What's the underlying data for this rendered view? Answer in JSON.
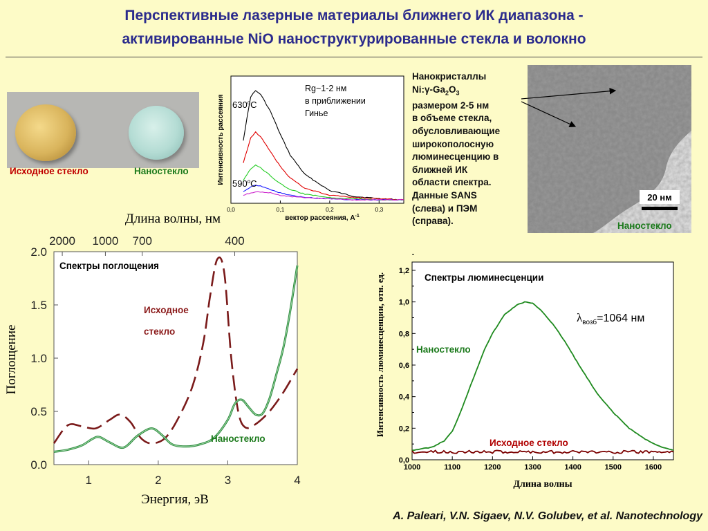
{
  "title": {
    "line1": "Перспективные лазерные материалы ближнего ИК диапазона -",
    "line2": "активированные NiO наноструктурированные стекла и волокно"
  },
  "photo": {
    "label_original": "Исходное стекло",
    "label_nano": "Наностекло"
  },
  "sans_plot": {
    "ylabel": "Интенсивность рассеяния",
    "xlabel": "вектор рассеяния, A",
    "xlabel_sup": "-1",
    "annotation_line1": "Rg~1-2 нм",
    "annotation_line2": "в приближении",
    "annotation_line3": "Гинье",
    "temp_high": "630",
    "temp_high_unit": "C",
    "temp_low": "590",
    "temp_low_unit": "C",
    "deg_sup": "o",
    "xticks": [
      "0,0",
      "0,1",
      "0,2",
      "0,3"
    ]
  },
  "tem": {
    "caption_lines": [
      "Нанокристаллы",
      "Ni:γ-Ga",
      "2",
      "O",
      "3",
      "размером 2-5 нм",
      "в объеме стекла,",
      "обусловливающие",
      "широкополосную",
      "люминесценцию в",
      "ближней ИК",
      "области спектра.",
      "Данные SANS",
      "(слева) и ПЭМ",
      "(справа)."
    ],
    "scale_label": "20 нм",
    "label": "Наностекло"
  },
  "absorption_plot": {
    "type": "line",
    "top_axis_label": "Длина волны, нм",
    "top_ticks": [
      "2000",
      "1000",
      "700",
      "400"
    ],
    "top_ticks_energy": [
      0.62,
      1.24,
      1.77,
      3.1
    ],
    "xlabel": "Энергия, эВ",
    "ylabel": "Поглощение",
    "inner_title": "Спектры поглощения",
    "xlim": [
      0.5,
      4.0
    ],
    "ylim": [
      0.0,
      2.0
    ],
    "xticks": [
      "1",
      "2",
      "3",
      "4"
    ],
    "yticks": [
      "0.0",
      "0.5",
      "1.0",
      "1.5",
      "2.0"
    ],
    "label_original_1": "Исходное",
    "label_original_2": "стекло",
    "label_nano": "Наностекло",
    "colors": {
      "original": "#7a1a1a",
      "nano": "#2e8b3e"
    }
  },
  "luminescence_plot": {
    "type": "line",
    "inner_title": "Спектры люминесценции",
    "ylabel": "Интенсивность люминесценции, отн. ед.",
    "xlabel": "Длина волны",
    "xlim": [
      1000,
      1650
    ],
    "ylim": [
      0.0,
      1.2
    ],
    "xticks": [
      "1000",
      "1100",
      "1200",
      "1300",
      "1400",
      "1500",
      "1600"
    ],
    "yticks": [
      "0,0",
      "0,2",
      "0,4",
      "0,6",
      "0,8",
      "1,0",
      "1,2"
    ],
    "excitation_lambda": "λ",
    "excitation_sub": "возб",
    "excitation_value": "=1064 нм",
    "label_nano": "Наностекло",
    "label_original": "Исходное стекло",
    "colors": {
      "nano": "#1e8a1e",
      "original": "#7a0000"
    }
  },
  "citation": "A. Paleari, V.N. Sigaev, N.V. Golubev, et al. Nanotechnology",
  "chart_data": [
    {
      "type": "line",
      "title": "",
      "xlabel": "вектор рассеяния, A-1",
      "ylabel": "Интенсивность рассеяния",
      "xlim": [
        0.0,
        0.35
      ],
      "series": [
        {
          "name": "630oC",
          "color": "#000000",
          "x": [
            0.025,
            0.04,
            0.05,
            0.06,
            0.08,
            0.1,
            0.12,
            0.15,
            0.2,
            0.25,
            0.3,
            0.35
          ],
          "y": [
            0.55,
            0.93,
            0.98,
            0.95,
            0.8,
            0.6,
            0.42,
            0.25,
            0.11,
            0.06,
            0.04,
            0.03
          ]
        },
        {
          "name": "",
          "color": "#e00000",
          "x": [
            0.025,
            0.04,
            0.05,
            0.06,
            0.08,
            0.1,
            0.12,
            0.15,
            0.2,
            0.25,
            0.3,
            0.35
          ],
          "y": [
            0.35,
            0.57,
            0.62,
            0.58,
            0.45,
            0.32,
            0.22,
            0.13,
            0.07,
            0.05,
            0.04,
            0.03
          ]
        },
        {
          "name": "",
          "color": "#22cc22",
          "x": [
            0.025,
            0.04,
            0.05,
            0.06,
            0.08,
            0.1,
            0.12,
            0.15,
            0.2,
            0.25,
            0.3,
            0.35
          ],
          "y": [
            0.2,
            0.3,
            0.33,
            0.31,
            0.24,
            0.17,
            0.12,
            0.08,
            0.05,
            0.04,
            0.03,
            0.03
          ]
        },
        {
          "name": "",
          "color": "#1a1aff",
          "x": [
            0.025,
            0.04,
            0.05,
            0.06,
            0.08,
            0.1,
            0.12,
            0.15,
            0.2,
            0.25,
            0.3,
            0.35
          ],
          "y": [
            0.1,
            0.14,
            0.16,
            0.15,
            0.12,
            0.09,
            0.07,
            0.05,
            0.04,
            0.03,
            0.03,
            0.03
          ]
        },
        {
          "name": "590oC",
          "color": "#cc22cc",
          "x": [
            0.025,
            0.04,
            0.05,
            0.06,
            0.08,
            0.1,
            0.12,
            0.15,
            0.2,
            0.25,
            0.3,
            0.35
          ],
          "y": [
            0.07,
            0.09,
            0.1,
            0.1,
            0.09,
            0.07,
            0.06,
            0.05,
            0.04,
            0.03,
            0.03,
            0.03
          ]
        }
      ]
    },
    {
      "type": "line",
      "title": "Спектры поглощения",
      "xlabel": "Энергия, эВ",
      "ylabel": "Поглощение",
      "xlim": [
        0.5,
        4.0
      ],
      "ylim": [
        0.0,
        2.0
      ],
      "series": [
        {
          "name": "Исходное стекло",
          "style": "dashed",
          "x": [
            0.5,
            0.7,
            0.9,
            1.1,
            1.3,
            1.45,
            1.6,
            1.75,
            1.9,
            2.1,
            2.3,
            2.5,
            2.65,
            2.75,
            2.85,
            2.95,
            3.05,
            3.15,
            3.25,
            3.4,
            3.6,
            3.8,
            4.0
          ],
          "y": [
            0.2,
            0.37,
            0.36,
            0.34,
            0.42,
            0.47,
            0.4,
            0.25,
            0.2,
            0.25,
            0.45,
            0.75,
            1.15,
            1.6,
            1.93,
            1.8,
            1.0,
            0.5,
            0.35,
            0.38,
            0.5,
            0.68,
            0.9
          ]
        },
        {
          "name": "Наностекло",
          "style": "solid",
          "x": [
            0.5,
            0.7,
            0.9,
            1.05,
            1.15,
            1.3,
            1.5,
            1.7,
            1.9,
            2.05,
            2.2,
            2.4,
            2.6,
            2.8,
            3.0,
            3.1,
            3.2,
            3.3,
            3.4,
            3.5,
            3.6,
            3.7,
            3.8,
            3.9,
            4.0
          ],
          "y": [
            0.12,
            0.14,
            0.18,
            0.24,
            0.26,
            0.21,
            0.16,
            0.27,
            0.34,
            0.28,
            0.19,
            0.17,
            0.19,
            0.25,
            0.42,
            0.57,
            0.61,
            0.54,
            0.47,
            0.48,
            0.62,
            0.85,
            1.1,
            1.45,
            1.87
          ]
        }
      ]
    },
    {
      "type": "line",
      "title": "Спектры люминесценции",
      "xlabel": "Длина волны",
      "ylabel": "Интенсивность люминесценции, отн. ед.",
      "xlim": [
        1000,
        1650
      ],
      "ylim": [
        0.0,
        1.2
      ],
      "series": [
        {
          "name": "Наностекло",
          "x": [
            1000,
            1050,
            1080,
            1100,
            1120,
            1150,
            1180,
            1200,
            1230,
            1260,
            1280,
            1300,
            1320,
            1350,
            1380,
            1420,
            1460,
            1500,
            1540,
            1580,
            1620,
            1650
          ],
          "y": [
            0.06,
            0.08,
            0.12,
            0.18,
            0.3,
            0.5,
            0.7,
            0.8,
            0.92,
            0.98,
            1.0,
            0.99,
            0.95,
            0.86,
            0.75,
            0.58,
            0.42,
            0.3,
            0.2,
            0.13,
            0.08,
            0.06
          ]
        },
        {
          "name": "Исходное стекло",
          "x": [
            1000,
            1100,
            1200,
            1300,
            1400,
            1500,
            1600,
            1650
          ],
          "y": [
            0.05,
            0.05,
            0.05,
            0.05,
            0.05,
            0.05,
            0.05,
            0.05
          ]
        }
      ]
    }
  ]
}
